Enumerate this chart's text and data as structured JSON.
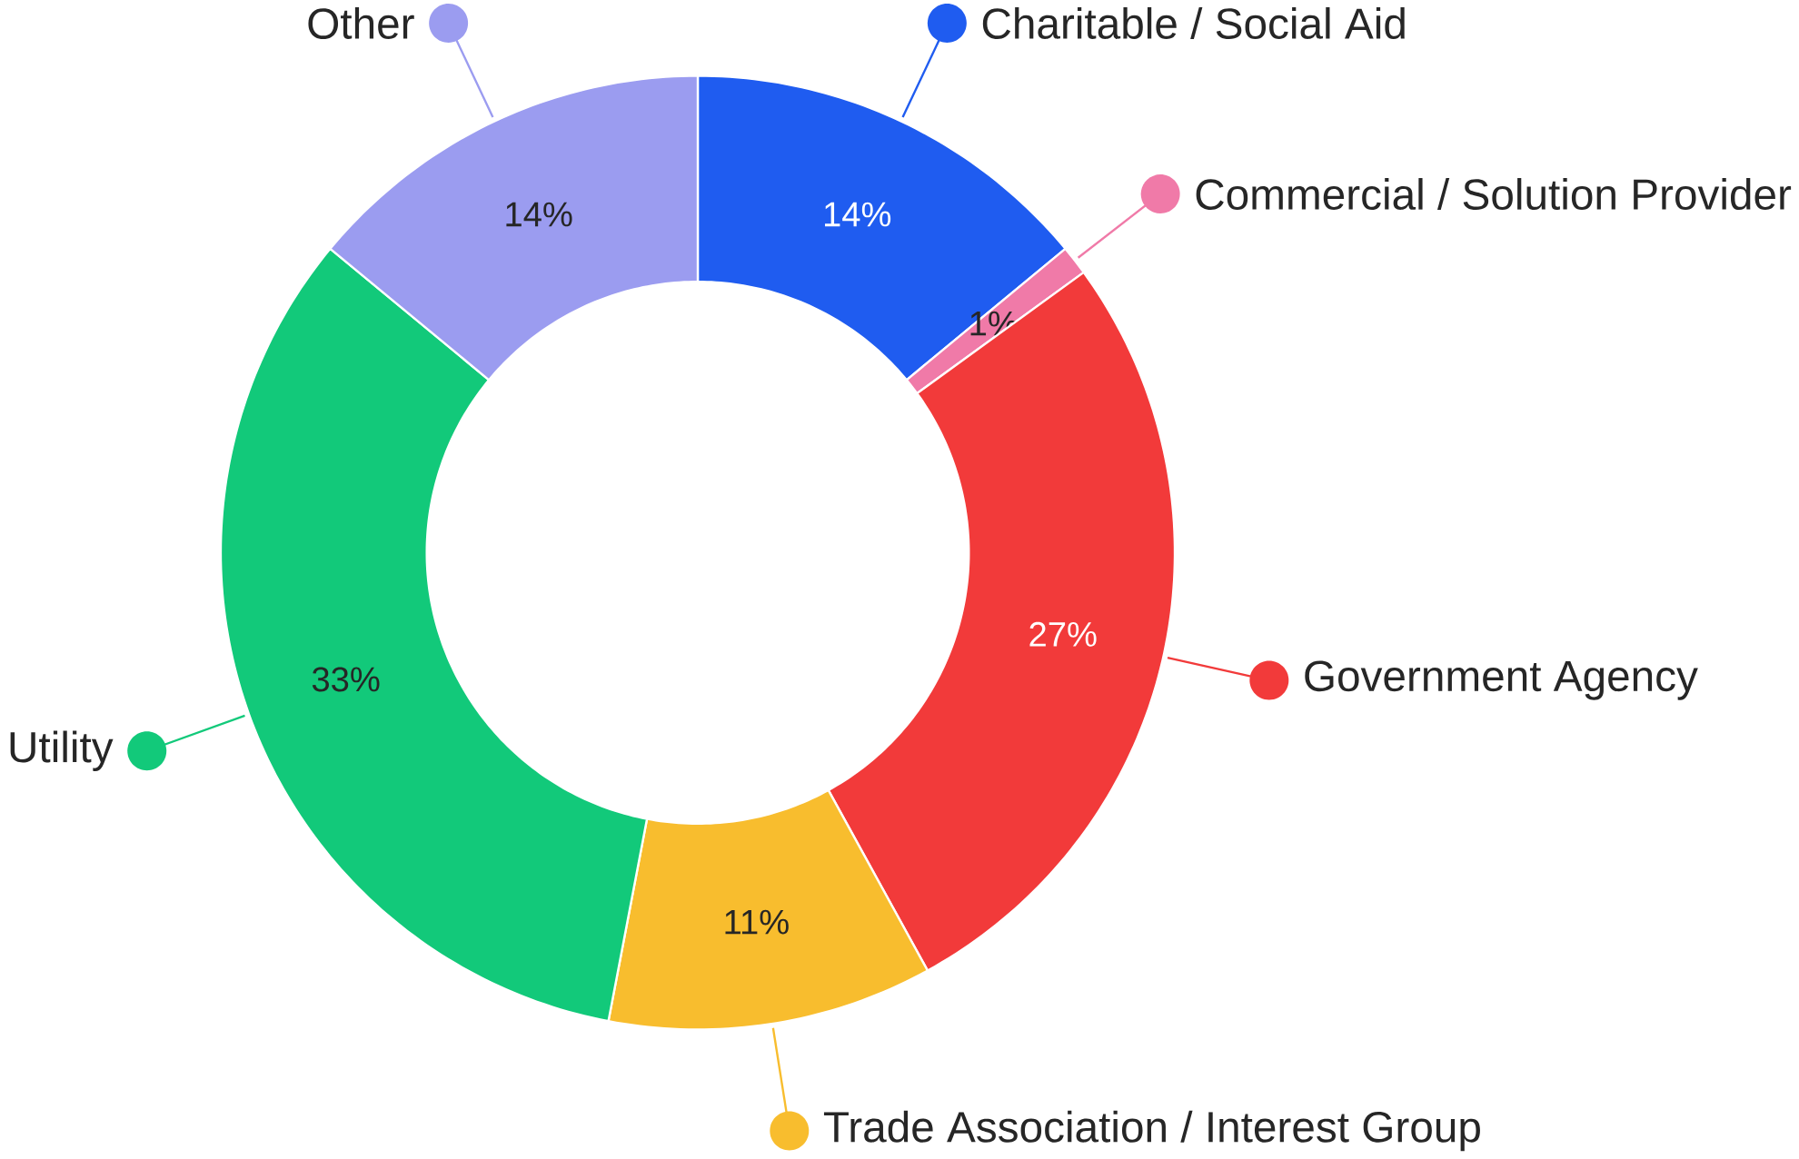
{
  "chart_data": {
    "type": "donut",
    "categories": [
      "Charitable / Social Aid",
      "Commercial / Solution Provider",
      "Government Agency",
      "Trade Association / Interest Group",
      "Utility",
      "Other"
    ],
    "values": [
      14,
      1,
      27,
      11,
      33,
      14
    ],
    "value_labels": [
      "14%",
      "1%",
      "27%",
      "11%",
      "33%",
      "14%"
    ],
    "legend": "right",
    "colors": [
      "#1f5cf0",
      "#f07aa8",
      "#f23a3a",
      "#f8bd2e",
      "#12c97a",
      "#9b9cf0"
    ]
  }
}
